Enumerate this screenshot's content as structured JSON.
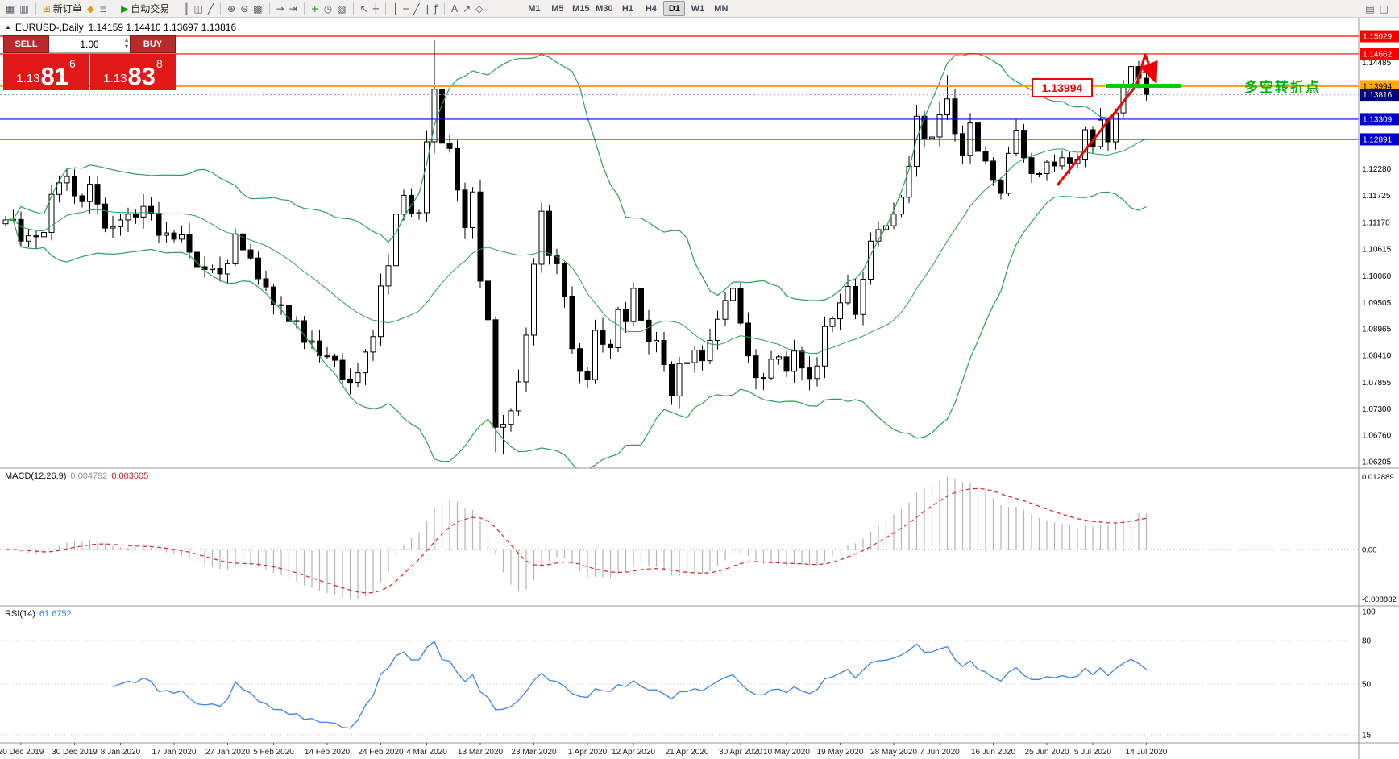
{
  "toolbar": {
    "groups": [
      {
        "items": [
          {
            "name": "new-chart",
            "glyph": "▦"
          },
          {
            "name": "open-chart",
            "glyph": "▥"
          }
        ]
      },
      {
        "items": [
          {
            "name": "new-order",
            "glyph": "⊞",
            "color": "#c09020",
            "label": "新订单"
          },
          {
            "name": "quotes",
            "glyph": "◆",
            "color": "#d4a017"
          },
          {
            "name": "history-center",
            "glyph": "≣",
            "color": "#667788"
          }
        ]
      },
      {
        "items": [
          {
            "name": "autotrading",
            "glyph": "▶",
            "color": "#0a9a0a",
            "label": "自动交易"
          }
        ]
      },
      {
        "items": [
          {
            "name": "bar-chart-mode",
            "glyph": "║"
          },
          {
            "name": "candlestick-mode",
            "glyph": "◫"
          },
          {
            "name": "line-chart-mode",
            "glyph": "╱"
          }
        ]
      },
      {
        "items": [
          {
            "name": "zoom-in",
            "glyph": "⊕"
          },
          {
            "name": "zoom-out",
            "glyph": "⊖"
          },
          {
            "name": "grid",
            "glyph": "▩"
          }
        ]
      },
      {
        "items": [
          {
            "name": "auto-scroll",
            "glyph": "→"
          },
          {
            "name": "chart-shift",
            "glyph": "⇥"
          }
        ]
      },
      {
        "items": [
          {
            "name": "indicators",
            "glyph": "+",
            "color": "#0a9a0a"
          },
          {
            "name": "periods",
            "glyph": "◷"
          },
          {
            "name": "templates",
            "glyph": "▧"
          }
        ]
      },
      {
        "items": [
          {
            "name": "cursor",
            "glyph": "↖"
          },
          {
            "name": "crosshair",
            "glyph": "┼"
          }
        ]
      },
      {
        "items": [
          {
            "name": "vertical-line-tool",
            "glyph": "│"
          },
          {
            "name": "horizontal-line-tool",
            "glyph": "─"
          },
          {
            "name": "trendline-tool",
            "glyph": "╱"
          },
          {
            "name": "channel-tool",
            "glyph": "∥"
          },
          {
            "name": "fibonacci-tool",
            "glyph": "ƒ"
          }
        ]
      },
      {
        "items": [
          {
            "name": "text-tool",
            "glyph": "A"
          },
          {
            "name": "arrow-tool",
            "glyph": "↗"
          },
          {
            "name": "shapes-tool",
            "glyph": "◇"
          }
        ]
      }
    ],
    "timeframes": [
      "M1",
      "M5",
      "M15",
      "M30",
      "H1",
      "H4",
      "D1",
      "W1",
      "MN"
    ],
    "active_timeframe": "D1",
    "right_items": [
      {
        "name": "print",
        "glyph": "▤"
      },
      {
        "name": "print-preview",
        "glyph": "□"
      }
    ]
  },
  "chart": {
    "title_symbol": "EURUSD-,Daily",
    "title_ohlc": "1.14159 1.14410 1.13697 1.13816",
    "collapse_glyph": "▲"
  },
  "one_click": {
    "sell_label": "SELL",
    "buy_label": "BUY",
    "volume": "1.00",
    "spin_up": "▴",
    "spin_down": "▾",
    "bid_prefix": "1.13",
    "bid_big": "81",
    "bid_sup": "6",
    "ask_prefix": "1.13",
    "ask_big": "83",
    "ask_sup": "8"
  },
  "indicator_labels": {
    "macd_name": "MACD(12,26,9)",
    "macd_main": "0.004792",
    "macd_signal": "0.003605",
    "rsi_name": "RSI(14)",
    "rsi_value": "61.6752"
  },
  "annotations": {
    "price_box": "1.13994",
    "turning_text": "多空转折点",
    "red": "#f00000",
    "green": "#00b300"
  },
  "chart_data": {
    "type": "candlestick",
    "symbol": "EURUSD-",
    "timeframe": "Daily",
    "current_bar": {
      "open": 1.14159,
      "high": 1.1441,
      "low": 1.13697,
      "close": 1.13816
    },
    "price_range": [
      1.0608,
      1.1545
    ],
    "closes": [
      1.1122,
      1.1123,
      1.1078,
      1.1089,
      1.1087,
      1.1096,
      1.1175,
      1.1199,
      1.1212,
      1.1172,
      1.116,
      1.1196,
      1.1155,
      1.1105,
      1.1108,
      1.1122,
      1.1134,
      1.1128,
      1.115,
      1.1136,
      1.109,
      1.1095,
      1.1082,
      1.1091,
      1.1055,
      1.1025,
      1.1019,
      1.1022,
      1.101,
      1.1031,
      1.1093,
      1.106,
      1.1043,
      1.1,
      1.0983,
      1.0946,
      1.0945,
      1.0911,
      1.0913,
      1.0868,
      1.0871,
      1.084,
      1.0839,
      1.0831,
      1.0792,
      1.0785,
      1.0805,
      1.0848,
      1.088,
      1.0985,
      1.1027,
      1.1134,
      1.1173,
      1.1135,
      1.1137,
      1.1284,
      1.1393,
      1.1281,
      1.127,
      1.1184,
      1.1106,
      1.118,
      1.0995,
      1.0915,
      1.0692,
      1.0698,
      1.0726,
      1.0786,
      1.0883,
      1.103,
      1.114,
      1.1048,
      1.1031,
      1.0964,
      1.0855,
      1.0808,
      1.0791,
      1.0893,
      1.0864,
      1.0857,
      1.0936,
      1.0911,
      1.098,
      1.0914,
      1.0869,
      1.0872,
      1.0822,
      1.0757,
      1.0824,
      1.0826,
      1.0852,
      1.083,
      1.0872,
      1.0916,
      1.0955,
      1.098,
      1.0908,
      1.084,
      1.0795,
      1.0794,
      1.0833,
      1.0838,
      1.0808,
      1.085,
      1.0815,
      1.0793,
      1.0819,
      1.0901,
      1.0917,
      1.095,
      1.0984,
      1.0926,
      1.0999,
      1.1078,
      1.1102,
      1.111,
      1.1134,
      1.1169,
      1.1233,
      1.1337,
      1.1291,
      1.1294,
      1.134,
      1.1373,
      1.1301,
      1.1256,
      1.1323,
      1.1264,
      1.1244,
      1.1204,
      1.1177,
      1.126,
      1.1308,
      1.1251,
      1.1218,
      1.1218,
      1.1242,
      1.1234,
      1.1251,
      1.1239,
      1.1248,
      1.1309,
      1.1274,
      1.1329,
      1.1284,
      1.1344,
      1.1397,
      1.144,
      1.1416,
      1.13816
    ],
    "overrides": {
      "56": {
        "h": 1.1495
      },
      "64": {
        "l": 1.064
      },
      "65": {
        "l": 1.0636
      },
      "123": {
        "h": 1.1422
      },
      "149": {
        "o": 1.14159,
        "h": 1.1441,
        "l": 1.13697,
        "c": 1.13816
      }
    },
    "indicators": [
      {
        "name": "Bollinger Bands",
        "params": "(20,2)"
      },
      {
        "name": "MACD",
        "params": "(12,26,9)",
        "values": [
          0.004792,
          0.003605
        ]
      },
      {
        "name": "RSI",
        "params": "(14)",
        "value": 61.6752
      }
    ],
    "levels": [
      {
        "price": 1.15029,
        "label": "1.15029",
        "line_color": "#f80000",
        "badge_bg": "#f80000",
        "badge_fg": "#ffffff",
        "width": 1.2
      },
      {
        "price": 1.14662,
        "label": "1.14662",
        "line_color": "#f80000",
        "badge_bg": "#f80000",
        "badge_fg": "#ffffff",
        "width": 1.2
      },
      {
        "price": 1.13994,
        "label": "1.13994",
        "line_color": "#ffa000",
        "badge_bg": "#ffaa00",
        "badge_fg": "#000000",
        "width": 2
      },
      {
        "price": 1.13309,
        "label": "1.13309",
        "line_color": "#0000e0",
        "badge_bg": "#0000cd",
        "badge_fg": "#ffffff",
        "width": 1.2
      },
      {
        "price": 1.12891,
        "label": "1.12891",
        "line_color": "#0000e0",
        "badge_bg": "#0000cd",
        "badge_fg": "#ffffff",
        "width": 1.2
      }
    ],
    "current_price": {
      "price": 1.13816,
      "label": "1.13816",
      "badge_bg": "#000080",
      "badge_fg": "#ffffff",
      "line_color": "#9090c0"
    },
    "price_axis": {
      "plain_labels": [
        "1.14485",
        "1.12280",
        "1.11725",
        "1.11170",
        "1.10615",
        "1.10060",
        "1.09505",
        "1.08965",
        "1.08410",
        "1.07855",
        "1.07300",
        "1.06760",
        "1.06205"
      ]
    },
    "macd_axis": {
      "max": "0.012889",
      "zero": "0.00",
      "min": "-0.008882"
    },
    "rsi_axis": [
      "100",
      "80",
      "50",
      "15"
    ],
    "dates": [
      "20 Dec 2019",
      "30 Dec 2019",
      "8 Jan 2020",
      "17 Jan 2020",
      "27 Jan 2020",
      "5 Feb 2020",
      "14 Feb 2020",
      "24 Feb 2020",
      "4 Mar 2020",
      "13 Mar 2020",
      "23 Mar 2020",
      "1 Apr 2020",
      "12 Apr 2020",
      "21 Apr 2020",
      "30 Apr 2020",
      "10 May 2020",
      "19 May 2020",
      "28 May 2020",
      "7 Jun 2020",
      "16 Jun 2020",
      "25 Jun 2020",
      "5 Jul 2020",
      "14 Jul 2020"
    ]
  }
}
